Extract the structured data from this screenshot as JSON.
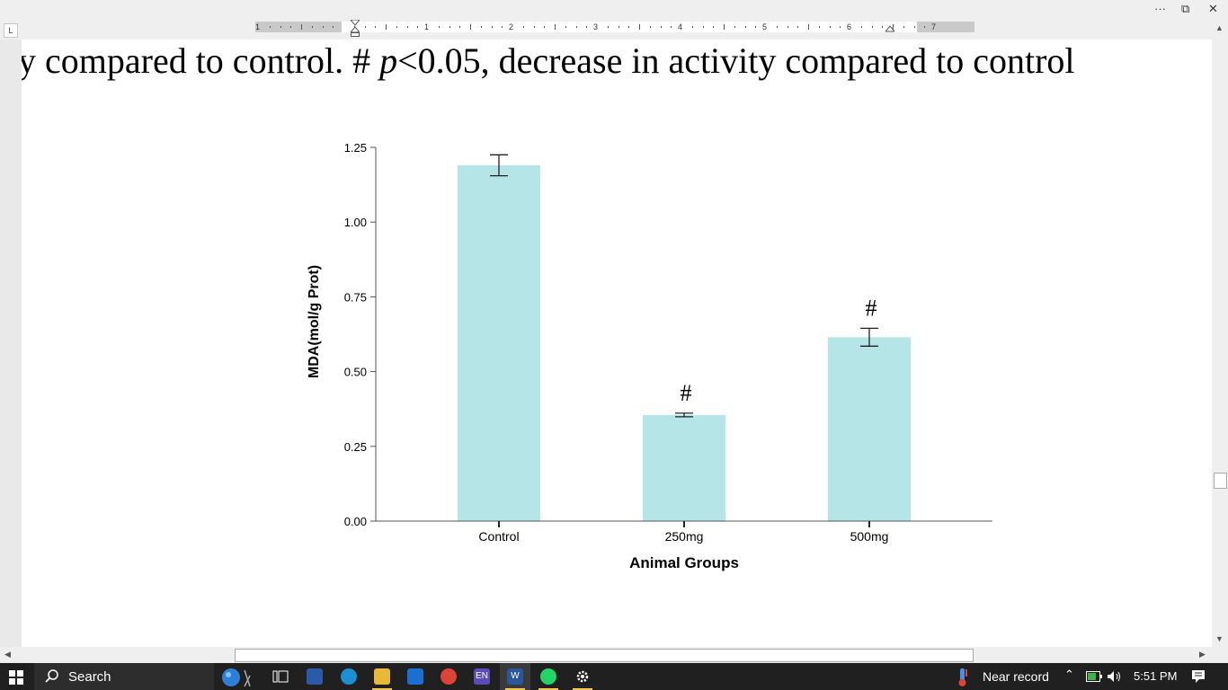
{
  "window": {
    "more_glyph": "···",
    "restore_glyph": "⧉",
    "close_glyph": "✕"
  },
  "ruler": {
    "tab_selector": "L",
    "numbers": [
      "1",
      "1",
      "2",
      "3",
      "4",
      "5",
      "6",
      "7"
    ]
  },
  "document": {
    "line_before": "y compared to control. # ",
    "line_italic": "p",
    "line_after": "<0.05, decrease in activity compared to control"
  },
  "chart_data": {
    "type": "bar",
    "categories": [
      "Control",
      "250mg",
      "500mg"
    ],
    "values": [
      1.19,
      0.355,
      0.615
    ],
    "errors": [
      0.035,
      0.006,
      0.03
    ],
    "markers": [
      "",
      "#",
      "#"
    ],
    "xlabel": "Animal Groups",
    "ylabel": "MDA(mol/g Prot)",
    "ylim": [
      0,
      1.25
    ],
    "yticks": [
      "0.00",
      "0.25",
      "0.50",
      "0.75",
      "1.00",
      "1.25"
    ],
    "ytick_values": [
      0,
      0.25,
      0.5,
      0.75,
      1.0,
      1.25
    ],
    "bar_color": "#b5e5e6",
    "grid": false
  },
  "taskbar": {
    "search_label": "Search",
    "weather_text": "Near record",
    "time": "5:51 PM",
    "lang_badge": "EN",
    "word_badge": "W",
    "icons": [
      "windows-start-icon",
      "search-icon",
      "task-view-icon",
      "store-icon",
      "edge-icon",
      "file-explorer-icon",
      "mail-icon",
      "chrome-icon",
      "word-icon",
      "whatsapp-icon",
      "settings-icon",
      "thermometer-icon",
      "chevron-up-icon",
      "battery-icon",
      "speaker-icon",
      "notification-icon"
    ],
    "accent": "#f2c94c"
  }
}
